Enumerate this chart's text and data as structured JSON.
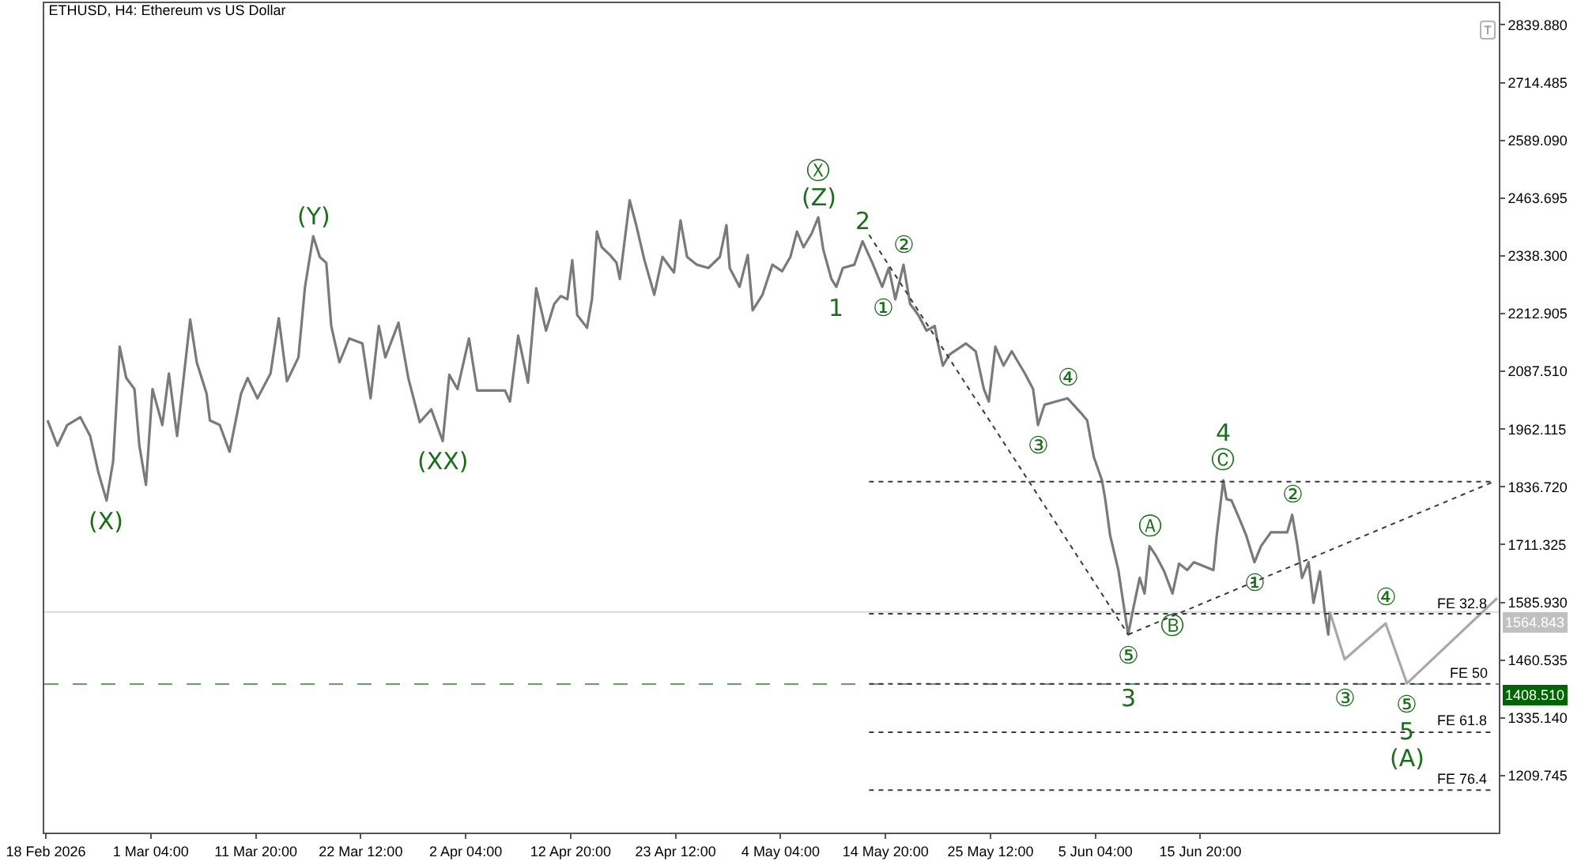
{
  "chart_data": {
    "type": "line",
    "title": "ETHUSD, H4: Ethereum vs US Dollar",
    "xlim": [
      "2026-02-18T08:00",
      "2026-07-16T04:00"
    ],
    "xticks": [
      {
        "value": "2026-02-18T12:00",
        "label": "18 Feb 2026"
      },
      {
        "value": "2026-03-01T04:00",
        "label": "1 Mar 04:00"
      },
      {
        "value": "2026-03-11T20:00",
        "label": "11 Mar 20:00"
      },
      {
        "value": "2026-03-22T12:00",
        "label": "22 Mar 12:00"
      },
      {
        "value": "2026-04-02T04:00",
        "label": "2 Apr 04:00"
      },
      {
        "value": "2026-04-12T20:00",
        "label": "12 Apr 20:00"
      },
      {
        "value": "2026-04-23T12:00",
        "label": "23 Apr 12:00"
      },
      {
        "value": "2026-05-04T04:00",
        "label": "4 May 04:00"
      },
      {
        "value": "2026-05-14T20:00",
        "label": "14 May 20:00"
      },
      {
        "value": "2026-05-25T12:00",
        "label": "25 May 12:00"
      },
      {
        "value": "2026-06-05T04:00",
        "label": "5 Jun 04:00"
      },
      {
        "value": "2026-06-15T20:00",
        "label": "15 Jun 20:00"
      }
    ],
    "ylim": [
      1086,
      2887
    ],
    "yticks": [
      {
        "value": 2839.88,
        "label": "2839.880"
      },
      2714.485,
      {
        "value": 2589.09,
        "label": "2589.090"
      },
      2463.695,
      {
        "value": 2338.3,
        "label": "2338.300"
      },
      2212.905,
      {
        "value": 2087.51,
        "label": "2087.510"
      },
      1962.115,
      {
        "value": 1836.72,
        "label": "1836.720"
      },
      1711.325,
      {
        "value": 1585.93,
        "label": "1585.930"
      },
      1460.535,
      {
        "value": 1335.14,
        "label": "1335.140"
      },
      1209.745
    ],
    "ref_lines": [
      {
        "axis": "y",
        "value": 1564.843,
        "label": "1564.843",
        "color": "#c0c0c0",
        "line_style": "solid"
      },
      {
        "axis": "y",
        "value": 1408.51,
        "label": "1408.510",
        "color": "#006400",
        "line_style": "dashed"
      }
    ],
    "series": [
      {
        "color": "#7a7a7a",
        "x": [
          "2026-02-18T16:00",
          "2026-02-19T16:00",
          "2026-02-20T16:00",
          "2026-02-22T00:00",
          "2026-02-23T00:00",
          "2026-02-23T20:00",
          "2026-02-24T16:00",
          "2026-02-25T08:00",
          "2026-02-26T00:00",
          "2026-02-26T16:00",
          "2026-02-27T12:00",
          "2026-02-28T00:00",
          "2026-02-28T16:00",
          "2026-03-01T08:00",
          "2026-03-02T08:00",
          "2026-03-03T00:00",
          "2026-03-03T20:00",
          "2026-03-05T04:00",
          "2026-03-05T20:00",
          "2026-03-06T20:00",
          "2026-03-07T04:00",
          "2026-03-08T04:00",
          "2026-03-09T04:00",
          "2026-03-10T08:00",
          "2026-03-11T00:00",
          "2026-03-12T00:00",
          "2026-03-13T08:00",
          "2026-03-14T04:00",
          "2026-03-15T00:00",
          "2026-03-16T04:00",
          "2026-03-16T20:00",
          "2026-03-17T16:00",
          "2026-03-18T08:00",
          "2026-03-19T00:00",
          "2026-03-19T12:00",
          "2026-03-20T08:00",
          "2026-03-21T08:00",
          "2026-03-22T16:00",
          "2026-03-23T12:00",
          "2026-03-24T08:00",
          "2026-03-25T00:00",
          "2026-03-26T08:00",
          "2026-03-27T08:00",
          "2026-03-28T12:00",
          "2026-03-29T16:00",
          "2026-03-30T20:00",
          "2026-03-31T12:00",
          "2026-04-01T08:00",
          "2026-04-02T12:00",
          "2026-04-03T08:00",
          "2026-04-06T04:00",
          "2026-04-06T16:00",
          "2026-04-07T12:00",
          "2026-04-08T12:00",
          "2026-04-09T08:00",
          "2026-04-10T08:00",
          "2026-04-11T04:00",
          "2026-04-11T20:00",
          "2026-04-12T12:00",
          "2026-04-13T00:00",
          "2026-04-13T12:00",
          "2026-04-14T12:00",
          "2026-04-15T00:00",
          "2026-04-15T12:00",
          "2026-04-16T00:00",
          "2026-04-16T20:00",
          "2026-04-17T12:00",
          "2026-04-17T20:00",
          "2026-04-18T20:00",
          "2026-04-19T12:00",
          "2026-04-20T08:00",
          "2026-04-21T08:00",
          "2026-04-22T04:00",
          "2026-04-23T08:00",
          "2026-04-24T00:00",
          "2026-04-24T16:00",
          "2026-04-25T16:00",
          "2026-04-26T20:00",
          "2026-04-28T00:00",
          "2026-04-28T16:00",
          "2026-04-29T00:00",
          "2026-04-30T00:00",
          "2026-04-30T20:00",
          "2026-05-01T08:00",
          "2026-05-02T08:00",
          "2026-05-03T08:00",
          "2026-05-04T08:00",
          "2026-05-05T04:00",
          "2026-05-05T20:00",
          "2026-05-06T12:00",
          "2026-05-07T08:00",
          "2026-05-08T00:00",
          "2026-05-08T12:00",
          "2026-05-09T08:00",
          "2026-05-09T20:00",
          "2026-05-10T12:00",
          "2026-05-11T16:00",
          "2026-05-12T12:00",
          "2026-05-13T12:00",
          "2026-05-14T12:00",
          "2026-05-15T04:00",
          "2026-05-15T20:00",
          "2026-05-16T16:00",
          "2026-05-17T08:00",
          "2026-05-18T04:00",
          "2026-05-19T00:00",
          "2026-05-19T20:00",
          "2026-05-20T04:00",
          "2026-05-20T16:00",
          "2026-05-21T08:00",
          "2026-05-23T00:00",
          "2026-05-24T00:00",
          "2026-05-24T20:00",
          "2026-05-25T08:00",
          "2026-05-26T00:00",
          "2026-05-26T20:00",
          "2026-05-27T16:00",
          "2026-05-29T00:00",
          "2026-05-29T20:00",
          "2026-05-30T08:00",
          "2026-05-31T00:00",
          "2026-06-01T04:00",
          "2026-06-02T08:00",
          "2026-06-03T16:00",
          "2026-06-04T08:00",
          "2026-06-05T00:00",
          "2026-06-05T20:00",
          "2026-06-06T04:00",
          "2026-06-06T16:00",
          "2026-06-07T12:00",
          "2026-06-08T00:00",
          "2026-06-08T12:00",
          "2026-06-09T00:00",
          "2026-06-09T16:00",
          "2026-06-10T04:00",
          "2026-06-10T16:00",
          "2026-06-11T08:00",
          "2026-06-12T04:00",
          "2026-06-13T00:00",
          "2026-06-13T16:00",
          "2026-06-14T12:00",
          "2026-06-15T04:00",
          "2026-06-17T04:00",
          "2026-06-17T12:00",
          "2026-06-18T04:00",
          "2026-06-18T12:00",
          "2026-06-19T00:00",
          "2026-06-19T20:00",
          "2026-06-20T12:00",
          "2026-06-21T08:00",
          "2026-06-22T00:00",
          "2026-06-23T00:00",
          "2026-06-24T16:00",
          "2026-06-25T04:00",
          "2026-06-25T16:00",
          "2026-06-26T04:00",
          "2026-06-26T20:00",
          "2026-06-27T08:00",
          "2026-06-28T00:00",
          "2026-06-28T12:00",
          "2026-06-28T20:00",
          "2026-06-29T00:00"
        ],
        "values": [
          1981,
          1926,
          1971,
          1988,
          1947,
          1868,
          1807,
          1892,
          2141,
          2073,
          2049,
          1926,
          1841,
          2049,
          1971,
          2083,
          1947,
          2200,
          2107,
          2039,
          1981,
          1971,
          1913,
          2039,
          2073,
          2029,
          2083,
          2203,
          2066,
          2118,
          2271,
          2381,
          2336,
          2323,
          2186,
          2107,
          2159,
          2148,
          2029,
          2186,
          2118,
          2193,
          2073,
          1977,
          2005,
          1936,
          2080,
          2049,
          2159,
          2046,
          2046,
          2022,
          2165,
          2063,
          2268,
          2176,
          2234,
          2251,
          2244,
          2329,
          2210,
          2182,
          2244,
          2391,
          2357,
          2340,
          2323,
          2288,
          2459,
          2405,
          2329,
          2254,
          2336,
          2302,
          2415,
          2336,
          2319,
          2312,
          2336,
          2405,
          2312,
          2271,
          2340,
          2220,
          2254,
          2319,
          2305,
          2336,
          2391,
          2357,
          2387,
          2422,
          2353,
          2288,
          2271,
          2312,
          2319,
          2370,
          2323,
          2271,
          2312,
          2244,
          2319,
          2234,
          2210,
          2176,
          2186,
          2148,
          2100,
          2124,
          2148,
          2131,
          2049,
          2022,
          2141,
          2100,
          2131,
          2083,
          2049,
          1971,
          2015,
          2022,
          2029,
          1998,
          1981,
          1902,
          1851,
          1810,
          1731,
          1656,
          1585,
          1516,
          1571,
          1639,
          1605,
          1708,
          1687,
          1653,
          1605,
          1670,
          1656,
          1673,
          1656,
          1731,
          1851,
          1810,
          1807,
          1766,
          1731,
          1673,
          1708,
          1738,
          1738,
          1776,
          1714,
          1639,
          1673,
          1585,
          1653,
          1561,
          1516,
          1565
        ]
      },
      {
        "color": "#a8a8a8",
        "x": [
          "2026-06-29T00:00",
          "2026-06-30T12:00",
          "2026-07-04T16:00",
          "2026-07-06T20:00",
          "2026-07-16T00:00"
        ],
        "values": [
          1565,
          1462,
          1540,
          1410,
          1595
        ]
      },
      {
        "color": "#3a3a3a",
        "line_style": "dotted",
        "x": [
          "2026-05-13T04:00",
          "2026-06-08T12:00"
        ],
        "values": [
          2384,
          1516
        ]
      },
      {
        "color": "#3a3a3a",
        "line_style": "dotted",
        "x": [
          "2026-06-08T12:00",
          "2026-07-15T16:00"
        ],
        "values": [
          1516,
          1848
        ]
      },
      {
        "color": "#3a3a3a",
        "line_style": "dotted",
        "x": [
          "2026-05-13T04:00",
          "2026-07-15T16:00"
        ],
        "values": [
          1848,
          1848
        ]
      },
      {
        "name": "FE 32.8",
        "color": "#3a3a3a",
        "line_style": "dotted",
        "x": [
          "2026-05-13T04:00",
          "2026-07-15T16:00"
        ],
        "values": [
          1561,
          1561
        ]
      },
      {
        "name": "FE 50",
        "color": "#3a3a3a",
        "line_style": "dotted",
        "x": [
          "2026-05-13T04:00",
          "2026-07-15T16:00"
        ],
        "values": [
          1409,
          1409
        ]
      },
      {
        "name": "FE 61.8",
        "color": "#3a3a3a",
        "line_style": "dotted",
        "x": [
          "2026-05-13T04:00",
          "2026-07-15T16:00"
        ],
        "values": [
          1304,
          1304
        ]
      },
      {
        "name": "FE 76.4",
        "color": "#3a3a3a",
        "line_style": "dotted",
        "x": [
          "2026-05-13T04:00",
          "2026-07-15T16:00"
        ],
        "values": [
          1178,
          1178
        ]
      }
    ],
    "annotations": [
      {
        "text": "(X)",
        "x": "2026-02-24T16:00",
        "y": 1807
      },
      {
        "text": "(Y)",
        "x": "2026-03-17T16:00",
        "y": 2381
      },
      {
        "text": "(XX)",
        "x": "2026-03-30T20:00",
        "y": 1936
      },
      {
        "text": "(Z)",
        "x": "2026-05-08T00:00",
        "y": 2422
      },
      {
        "text": "Ⓧ",
        "x": "2026-05-08T00:00",
        "y": 2422
      },
      {
        "text": "1",
        "x": "2026-05-09T20:00",
        "y": 2271
      },
      {
        "text": "2",
        "x": "2026-05-12T12:00",
        "y": 2370
      },
      {
        "text": "①",
        "x": "2026-05-14T12:00",
        "y": 2271
      },
      {
        "text": "②",
        "x": "2026-05-16T16:00",
        "y": 2319
      },
      {
        "text": "③",
        "x": "2026-05-30T08:00",
        "y": 1971
      },
      {
        "text": "④",
        "x": "2026-06-02T08:00",
        "y": 2029
      },
      {
        "text": "⑤",
        "x": "2026-06-08T12:00",
        "y": 1516
      },
      {
        "text": "3",
        "x": "2026-06-08T12:00",
        "y": 1516
      },
      {
        "text": "Ⓐ",
        "x": "2026-06-10T16:00",
        "y": 1708
      },
      {
        "text": "Ⓑ",
        "x": "2026-06-13T00:00",
        "y": 1605
      },
      {
        "text": "Ⓒ",
        "x": "2026-06-18T04:00",
        "y": 1851
      },
      {
        "text": "4",
        "x": "2026-06-18T04:00",
        "y": 1851
      },
      {
        "text": "①",
        "x": "2026-06-21T08:00",
        "y": 1673
      },
      {
        "text": "②",
        "x": "2026-06-25T04:00",
        "y": 1776
      },
      {
        "text": "③",
        "x": "2026-06-30T12:00",
        "y": 1462
      },
      {
        "text": "④",
        "x": "2026-07-04T16:00",
        "y": 1540
      },
      {
        "text": "⑤",
        "x": "2026-07-06T20:00",
        "y": 1410
      },
      {
        "text": "5",
        "x": "2026-07-06T20:00",
        "y": 1410
      },
      {
        "text": "(A)",
        "x": "2026-07-06T20:00",
        "y": 1410
      }
    ]
  }
}
